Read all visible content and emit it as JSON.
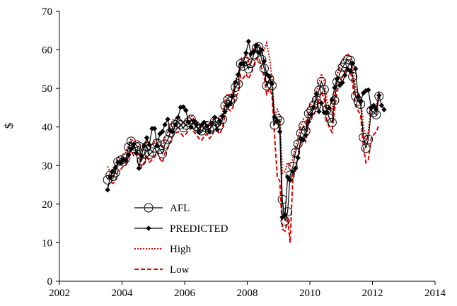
{
  "chart_data": {
    "type": "line",
    "title": "",
    "xlabel": "",
    "ylabel": "$",
    "xlim": [
      2002,
      2014
    ],
    "ylim": [
      0,
      70
    ],
    "xticks": [
      2002,
      2004,
      2006,
      2008,
      2010,
      2012,
      2014
    ],
    "yticks": [
      0,
      10,
      20,
      30,
      40,
      50,
      60,
      70
    ],
    "xtick_labels": [
      "2002",
      "2004",
      "2006",
      "2008",
      "2010",
      "2012",
      "2014"
    ],
    "ytick_labels": [
      "0",
      "10",
      "20",
      "30",
      "40",
      "50",
      "60",
      "70"
    ],
    "grid": false,
    "legend_position": "lower-left",
    "series": [
      {
        "name": "AFL",
        "style": "circle-markers",
        "color": "#000000",
        "x": [
          2003.54,
          2003.62,
          2003.71,
          2003.79,
          2003.87,
          2003.96,
          2004.04,
          2004.12,
          2004.21,
          2004.29,
          2004.37,
          2004.46,
          2004.54,
          2004.62,
          2004.71,
          2004.79,
          2004.87,
          2004.96,
          2005.04,
          2005.12,
          2005.21,
          2005.29,
          2005.37,
          2005.46,
          2005.54,
          2005.62,
          2005.71,
          2005.79,
          2005.87,
          2005.96,
          2006.04,
          2006.12,
          2006.21,
          2006.29,
          2006.37,
          2006.46,
          2006.54,
          2006.62,
          2006.71,
          2006.79,
          2006.87,
          2006.96,
          2007.04,
          2007.12,
          2007.21,
          2007.29,
          2007.37,
          2007.46,
          2007.54,
          2007.62,
          2007.71,
          2007.79,
          2007.87,
          2007.96,
          2008.04,
          2008.12,
          2008.21,
          2008.29,
          2008.37,
          2008.46,
          2008.54,
          2008.62,
          2008.71,
          2008.79,
          2008.87,
          2008.96,
          2009.04,
          2009.12,
          2009.21,
          2009.29,
          2009.37,
          2009.46,
          2009.54,
          2009.62,
          2009.71,
          2009.79,
          2009.87,
          2009.96,
          2010.04,
          2010.12,
          2010.21,
          2010.29,
          2010.37,
          2010.46,
          2010.54,
          2010.62,
          2010.71,
          2010.79,
          2010.87,
          2010.96,
          2011.04,
          2011.12,
          2011.21,
          2011.29,
          2011.37,
          2011.46,
          2011.54,
          2011.62,
          2011.71,
          2011.79,
          2011.87,
          2011.96,
          2012.04,
          2012.12,
          2012.21
        ],
        "values": [
          26.3,
          27.5,
          27.2,
          28.2,
          31.0,
          31.4,
          31.0,
          31.9,
          34.8,
          36.3,
          34.5,
          34.8,
          35.0,
          31.2,
          33.0,
          35.0,
          32.8,
          33.5,
          34.6,
          35.8,
          34.2,
          33.1,
          35.6,
          36.7,
          38.5,
          39.9,
          40.6,
          41.1,
          40.6,
          39.8,
          40.5,
          41.3,
          42.0,
          40.8,
          40.2,
          39.5,
          39.0,
          39.9,
          40.4,
          39.3,
          40.1,
          41.5,
          41.2,
          40.5,
          42.0,
          45.5,
          47.0,
          46.6,
          47.5,
          50.3,
          51.2,
          56.4,
          55.8,
          57.0,
          55.1,
          56.5,
          58.8,
          60.5,
          60.8,
          57.5,
          55.2,
          50.7,
          52.5,
          50.8,
          40.5,
          42.2,
          41.6,
          21.2,
          15.6,
          18.0,
          27.5,
          29.8,
          33.4,
          35.6,
          38.4,
          40.3,
          39.0,
          43.5,
          44.3,
          45.6,
          47.0,
          49.5,
          51.8,
          49.7,
          44.5,
          42.3,
          41.2,
          46.9,
          51.7,
          54.0,
          55.5,
          56.5,
          57.5,
          57.3,
          53.1,
          48.0,
          46.7,
          45.9,
          37.3,
          34.5,
          36.8,
          44.3,
          43.8,
          43.2,
          48.0
        ]
      },
      {
        "name": "PREDICTED",
        "style": "diamond-markers",
        "color": "#000000",
        "x": [
          2003.54,
          2003.62,
          2003.71,
          2003.79,
          2003.87,
          2003.96,
          2004.04,
          2004.12,
          2004.21,
          2004.29,
          2004.37,
          2004.46,
          2004.54,
          2004.62,
          2004.71,
          2004.79,
          2004.87,
          2004.96,
          2005.04,
          2005.12,
          2005.21,
          2005.29,
          2005.37,
          2005.46,
          2005.54,
          2005.62,
          2005.71,
          2005.79,
          2005.87,
          2005.96,
          2006.04,
          2006.12,
          2006.21,
          2006.29,
          2006.37,
          2006.46,
          2006.54,
          2006.62,
          2006.71,
          2006.79,
          2006.87,
          2006.96,
          2007.04,
          2007.12,
          2007.21,
          2007.29,
          2007.37,
          2007.46,
          2007.54,
          2007.62,
          2007.71,
          2007.79,
          2007.87,
          2007.96,
          2008.04,
          2008.12,
          2008.21,
          2008.29,
          2008.37,
          2008.46,
          2008.54,
          2008.62,
          2008.71,
          2008.79,
          2008.87,
          2008.96,
          2009.04,
          2009.12,
          2009.21,
          2009.29,
          2009.37,
          2009.46,
          2009.54,
          2009.62,
          2009.71,
          2009.79,
          2009.87,
          2009.96,
          2010.04,
          2010.12,
          2010.21,
          2010.29,
          2010.37,
          2010.46,
          2010.54,
          2010.62,
          2010.71,
          2010.79,
          2010.87,
          2010.96,
          2011.04,
          2011.12,
          2011.21,
          2011.29,
          2011.37,
          2011.46,
          2011.54,
          2011.62,
          2011.71,
          2011.79,
          2011.87,
          2011.96,
          2012.04,
          2012.12,
          2012.21,
          2012.29,
          2012.37
        ],
        "values": [
          23.7,
          27.0,
          28.5,
          29.5,
          30.8,
          30.7,
          31.6,
          31.4,
          32.8,
          34.3,
          35.5,
          33.2,
          29.3,
          32.6,
          35.1,
          37.2,
          35.4,
          39.6,
          39.6,
          35.2,
          38.2,
          38.8,
          40.6,
          42.0,
          39.0,
          38.7,
          40.6,
          42.5,
          45.1,
          45.2,
          44.3,
          41.2,
          40.0,
          41.5,
          40.6,
          38.6,
          40.5,
          41.2,
          40.2,
          38.8,
          41.0,
          42.5,
          39.3,
          41.6,
          42.8,
          44.0,
          45.5,
          46.1,
          48.0,
          51.6,
          53.6,
          56.3,
          56.5,
          59.2,
          62.2,
          59.0,
          59.5,
          61.1,
          59.2,
          60.0,
          57.0,
          53.7,
          53.0,
          51.2,
          42.6,
          41.6,
          38.8,
          16.6,
          17.3,
          27.0,
          26.2,
          28.4,
          29.3,
          32.0,
          37.0,
          36.6,
          37.9,
          41.4,
          43.2,
          45.2,
          48.6,
          44.0,
          46.2,
          43.7,
          43.9,
          44.9,
          47.0,
          50.2,
          52.5,
          50.8,
          51.5,
          53.4,
          55.0,
          54.5,
          56.5,
          55.1,
          47.9,
          46.7,
          48.8,
          49.4,
          49.6,
          44.9,
          45.6,
          44.6,
          48.2,
          45.6,
          44.5
        ]
      },
      {
        "name": "High",
        "style": "dotted",
        "color": "#e00000",
        "x": [
          2003.54,
          2003.62,
          2003.71,
          2003.79,
          2003.87,
          2003.96,
          2004.04,
          2004.12,
          2004.21,
          2004.29,
          2004.37,
          2004.46,
          2004.54,
          2004.62,
          2004.71,
          2004.79,
          2004.87,
          2004.96,
          2005.04,
          2005.12,
          2005.21,
          2005.29,
          2005.37,
          2005.46,
          2005.54,
          2005.62,
          2005.71,
          2005.79,
          2005.87,
          2005.96,
          2006.04,
          2006.12,
          2006.21,
          2006.29,
          2006.37,
          2006.46,
          2006.54,
          2006.62,
          2006.71,
          2006.79,
          2006.87,
          2006.96,
          2007.04,
          2007.12,
          2007.21,
          2007.29,
          2007.37,
          2007.46,
          2007.54,
          2007.62,
          2007.71,
          2007.79,
          2007.87,
          2007.96,
          2008.04,
          2008.12,
          2008.21,
          2008.29,
          2008.37,
          2008.46,
          2008.54,
          2008.62,
          2008.71,
          2008.79,
          2008.87,
          2008.96,
          2009.04,
          2009.12,
          2009.21,
          2009.29,
          2009.37,
          2009.46,
          2009.54,
          2009.62,
          2009.71,
          2009.79,
          2009.87,
          2009.96,
          2010.04,
          2010.12,
          2010.21,
          2010.29,
          2010.37,
          2010.46,
          2010.54,
          2010.62,
          2010.71,
          2010.79,
          2010.87,
          2010.96,
          2011.04,
          2011.12,
          2011.21,
          2011.29,
          2011.37,
          2011.46,
          2011.54,
          2011.62,
          2011.71,
          2011.79,
          2011.87,
          2011.96,
          2012.04,
          2012.12,
          2012.21
        ],
        "values": [
          29.8,
          28.3,
          29.2,
          30.5,
          31.8,
          32.5,
          33.0,
          33.5,
          35.5,
          37.0,
          36.2,
          36.4,
          36.5,
          34.0,
          34.8,
          36.2,
          35.0,
          35.5,
          36.2,
          37.0,
          36.0,
          35.0,
          37.2,
          38.6,
          40.2,
          41.8,
          42.2,
          42.5,
          41.8,
          41.0,
          41.6,
          42.5,
          43.0,
          42.0,
          41.2,
          40.5,
          40.2,
          41.0,
          41.6,
          40.4,
          41.2,
          42.8,
          42.5,
          41.8,
          43.5,
          47.0,
          48.6,
          48.2,
          49.0,
          52.2,
          53.5,
          58.0,
          57.6,
          58.8,
          57.0,
          58.5,
          60.5,
          62.0,
          61.5,
          58.8,
          60.0,
          61.8,
          58.0,
          52.8,
          43.0,
          44.6,
          43.0,
          28.0,
          28.5,
          30.8,
          30.0,
          32.0,
          35.0,
          37.2,
          40.0,
          42.0,
          40.8,
          45.0,
          46.0,
          47.5,
          49.0,
          51.5,
          53.8,
          52.0,
          47.0,
          45.0,
          43.8,
          48.8,
          53.5,
          55.8,
          57.5,
          58.3,
          59.0,
          58.2,
          55.2,
          50.0,
          48.5,
          47.6,
          40.0,
          37.0,
          38.8,
          46.0,
          45.5,
          45.0,
          49.5
        ]
      },
      {
        "name": "Low",
        "style": "dashed",
        "color": "#e00000",
        "x": [
          2003.54,
          2003.62,
          2003.71,
          2003.79,
          2003.87,
          2003.96,
          2004.04,
          2004.12,
          2004.21,
          2004.29,
          2004.37,
          2004.46,
          2004.54,
          2004.62,
          2004.71,
          2004.79,
          2004.87,
          2004.96,
          2005.04,
          2005.12,
          2005.21,
          2005.29,
          2005.37,
          2005.46,
          2005.54,
          2005.62,
          2005.71,
          2005.79,
          2005.87,
          2005.96,
          2006.04,
          2006.12,
          2006.21,
          2006.29,
          2006.37,
          2006.46,
          2006.54,
          2006.62,
          2006.71,
          2006.79,
          2006.87,
          2006.96,
          2007.04,
          2007.12,
          2007.21,
          2007.29,
          2007.37,
          2007.46,
          2007.54,
          2007.62,
          2007.71,
          2007.79,
          2007.87,
          2007.96,
          2008.04,
          2008.12,
          2008.21,
          2008.29,
          2008.37,
          2008.46,
          2008.54,
          2008.62,
          2008.71,
          2008.79,
          2008.87,
          2008.96,
          2009.04,
          2009.12,
          2009.21,
          2009.29,
          2009.37,
          2009.46,
          2009.54,
          2009.62,
          2009.71,
          2009.79,
          2009.87,
          2009.96,
          2010.04,
          2010.12,
          2010.21,
          2010.29,
          2010.37,
          2010.46,
          2010.54,
          2010.62,
          2010.71,
          2010.79,
          2010.87,
          2010.96,
          2011.04,
          2011.12,
          2011.21,
          2011.29,
          2011.37,
          2011.46,
          2011.54,
          2011.62,
          2011.71,
          2011.79,
          2011.87,
          2011.96,
          2012.04,
          2012.12,
          2012.21
        ],
        "values": [
          24.5,
          25.8,
          25.4,
          26.0,
          28.6,
          29.0,
          29.8,
          30.2,
          32.5,
          34.0,
          32.6,
          32.8,
          33.0,
          29.5,
          30.8,
          32.8,
          30.8,
          31.5,
          32.2,
          33.5,
          31.8,
          30.8,
          33.2,
          34.5,
          36.2,
          37.6,
          38.4,
          38.8,
          38.4,
          37.6,
          38.2,
          39.0,
          39.8,
          38.8,
          38.0,
          37.0,
          36.5,
          37.6,
          38.2,
          37.0,
          37.8,
          39.2,
          39.0,
          38.2,
          39.8,
          43.2,
          44.8,
          44.2,
          45.0,
          47.8,
          48.8,
          53.4,
          52.6,
          53.8,
          52.5,
          53.8,
          56.0,
          57.8,
          58.0,
          55.2,
          53.0,
          48.5,
          50.0,
          48.2,
          38.0,
          27.0,
          26.0,
          13.5,
          13.0,
          16.5,
          10.0,
          27.5,
          28.5,
          33.0,
          36.0,
          37.5,
          36.2,
          41.0,
          42.0,
          43.2,
          44.5,
          47.0,
          49.2,
          47.2,
          42.0,
          40.0,
          38.6,
          44.5,
          49.2,
          51.8,
          53.0,
          54.2,
          55.2,
          55.0,
          50.8,
          45.5,
          44.2,
          43.2,
          35.0,
          30.8,
          31.5,
          37.0,
          38.0,
          38.8,
          40.5
        ]
      }
    ]
  }
}
